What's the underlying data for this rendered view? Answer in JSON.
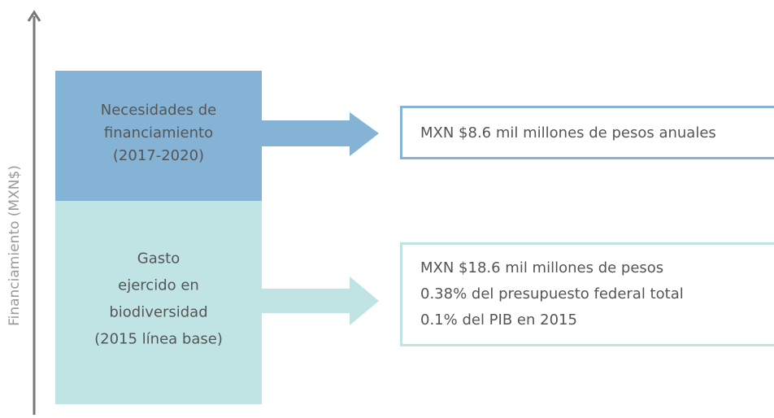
{
  "axis_label": "Financiamiento (MXN$)",
  "blocks": [
    {
      "lines": [
        "Necesidades de",
        "financiamiento",
        "(2017-2020)"
      ],
      "result_lines": [
        "MXN $8.6 mil millones de pesos anuales"
      ]
    },
    {
      "lines": [
        "Gasto",
        "ejercido en",
        "biodiversidad",
        "(2015 línea base)"
      ],
      "result_lines": [
        "MXN $18.6 mil millones de pesos",
        "0.38% del presupuesto federal total",
        "0.1% del PIB en 2015"
      ]
    }
  ]
}
